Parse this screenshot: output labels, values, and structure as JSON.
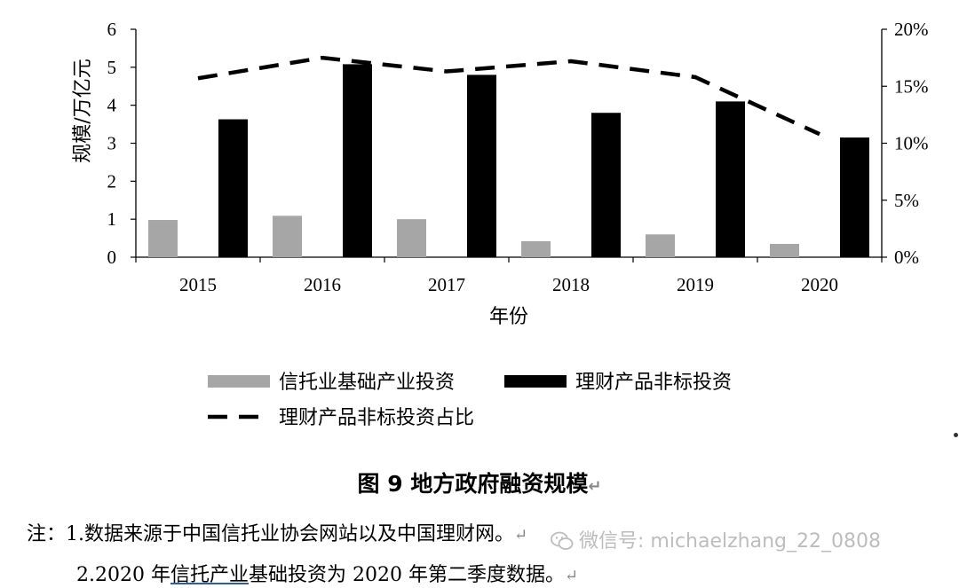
{
  "chart_data": {
    "type": "bar",
    "categories": [
      "2015",
      "2016",
      "2017",
      "2018",
      "2019",
      "2020"
    ],
    "series": [
      {
        "name": "信托业基础产业投资",
        "kind": "bar",
        "color": "#a6a6a6",
        "axis": "left",
        "values": [
          0.98,
          1.09,
          1.0,
          0.42,
          0.6,
          0.35
        ]
      },
      {
        "name": "理财产品非标投资",
        "kind": "bar",
        "color": "#000000",
        "axis": "left",
        "values": [
          3.63,
          5.08,
          4.8,
          3.8,
          4.1,
          3.15
        ]
      },
      {
        "name": "理财产品非标投资占比",
        "kind": "line",
        "style": "dashed",
        "color": "#000000",
        "axis": "right",
        "values": [
          15.7,
          17.5,
          16.3,
          17.2,
          15.8,
          10.8
        ]
      }
    ],
    "ylabel": "规模/万亿元",
    "xlabel": "年份",
    "ylim": [
      0,
      6
    ],
    "yticks": [
      "0",
      "1",
      "2",
      "3",
      "4",
      "5",
      "6"
    ],
    "y2lim": [
      0,
      20
    ],
    "y2ticks": [
      "0%",
      "5%",
      "10%",
      "15%",
      "20%"
    ],
    "grid": false,
    "legend_position": "bottom"
  },
  "caption": "图 9  地方政府融资规模",
  "return_mark": "↵",
  "notes": {
    "line1": "注：1.数据来源于中国信托业协会网站以及中国理财网。",
    "line2_pre": "2.2020 年",
    "line2_link": "信托产业",
    "line2_post": "基础投资为 2020 年第二季度数据。"
  },
  "watermark": "微信号: michaelzhang_22_0808"
}
